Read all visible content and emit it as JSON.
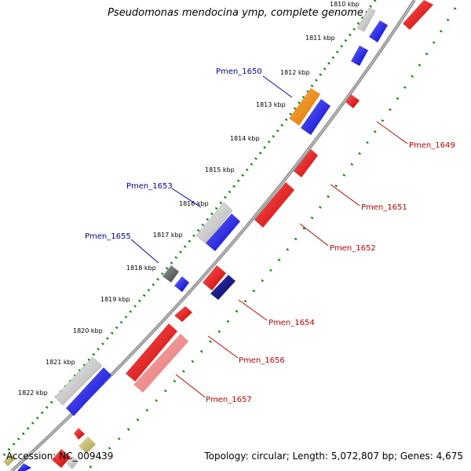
{
  "title": "Pseudomonas mendocina ymp, complete genome",
  "footer": {
    "accession": "Accession: NC_009439",
    "info": "Topology: circular; Length: 5,072,807 bp; Genes: 4,675"
  },
  "ticks": [
    "1810 kbp",
    "1811 kbp",
    "1812 kbp",
    "1813 kbp",
    "1814 kbp",
    "1815 kbp",
    "1816 kbp",
    "1817 kbp",
    "1818 kbp",
    "1819 kbp",
    "1820 kbp",
    "1821 kbp",
    "1822 kbp"
  ],
  "gene_labels": [
    "Pmen_1650",
    "Pmen_1653",
    "Pmen_1655",
    "Pmen_1649",
    "Pmen_1651",
    "Pmen_1652",
    "Pmen_1654",
    "Pmen_1656",
    "Pmen_1657"
  ],
  "colors": {
    "forward_cds": "#0000ee",
    "reverse_cds": "#ee0000",
    "other_gene": "#b8b8b8",
    "highlight_orange": "#f08a00",
    "pale_red": "#ee8888",
    "label_forward": "#0000aa",
    "label_reverse": "#cc0000",
    "backbone": "#888888",
    "tick_track": "#008800"
  }
}
